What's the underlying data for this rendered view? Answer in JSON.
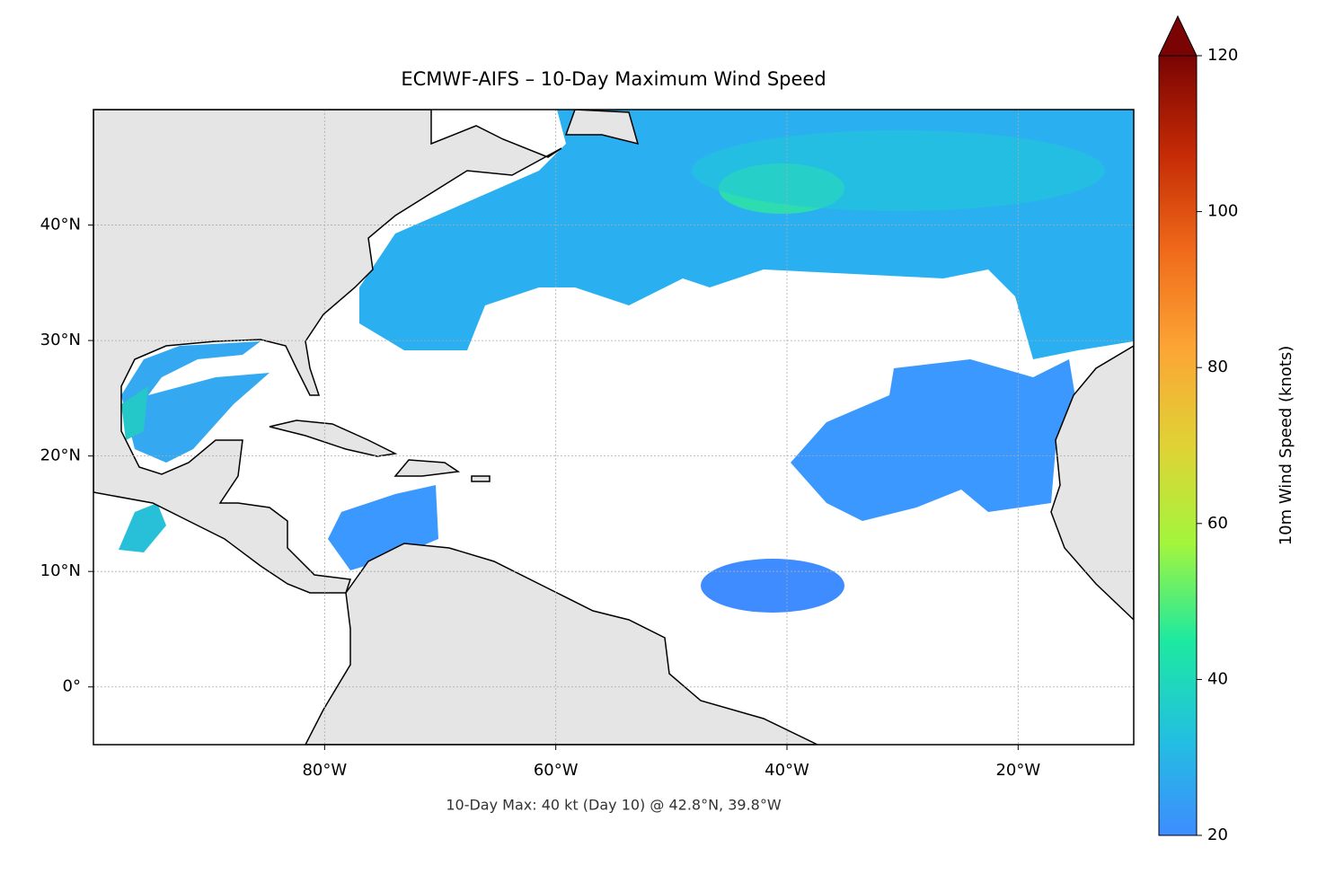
{
  "chart_data": {
    "type": "map",
    "title": "ECMWF-AIFS – 10-Day Maximum Wind Speed",
    "annotation": "10-Day Max: 40 kt (Day 10) @ 42.8°N, 39.8°W",
    "xlim": [
      -100,
      -10
    ],
    "ylim": [
      -5,
      50
    ],
    "xticks": [
      {
        "value": -80,
        "label": "80°W"
      },
      {
        "value": -60,
        "label": "60°W"
      },
      {
        "value": -40,
        "label": "40°W"
      },
      {
        "value": -20,
        "label": "20°W"
      }
    ],
    "yticks": [
      {
        "value": 0,
        "label": "0°"
      },
      {
        "value": 10,
        "label": "10°N"
      },
      {
        "value": 20,
        "label": "20°N"
      },
      {
        "value": 30,
        "label": "30°N"
      },
      {
        "value": 40,
        "label": "40°N"
      }
    ],
    "grid": true,
    "colorbar": {
      "label": "10m Wind Speed (knots)",
      "lim": [
        20,
        120
      ],
      "ticks": [
        20,
        40,
        60,
        80,
        100,
        120
      ],
      "extend": "max",
      "colors": [
        "#3e8cff",
        "#22c0e0",
        "#1de9a0",
        "#a4f53c",
        "#e0d235",
        "#fca535",
        "#f06a1a",
        "#c42a05",
        "#7a0403"
      ]
    }
  }
}
